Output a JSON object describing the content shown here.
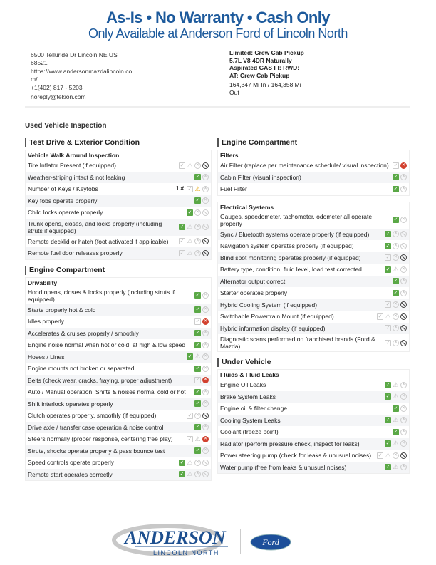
{
  "header": {
    "title": "As-Is • No Warranty • Cash Only",
    "subtitle": "Only Available at Anderson Ford of Lincoln North"
  },
  "dealer": {
    "address": "6500 Telluride Dr Lincoln NE US 68521",
    "url": "https://www.andersonmazdalincoln.com/",
    "phone": "+1(402) 817 - 5203",
    "email": "noreply@tekion.com"
  },
  "vehicle": {
    "desc": "Limited: Crew Cab Pickup 5.7L V8 4DR Naturally Aspirated GAS FI: RWD: AT: Crew Cab Pickup",
    "mileage": "164,347 Mi In / 164,358 Mi Out"
  },
  "page_title": "Used Vehicle Inspection",
  "icon_legend": {
    "C": "check selected (green)",
    "c": "check unselected",
    "W": "warning selected (yellow)",
    "w": "warning unselected",
    "X": "fail selected (red)",
    "x": "fail unselected",
    "N": "not-applicable selected",
    "n": "not-applicable unselected"
  },
  "colors": {
    "brand": "#1d5a9c",
    "pass": "#5aa846",
    "warn": "#e8a914",
    "fail": "#d2412f"
  },
  "left": [
    {
      "title": "Test Drive & Exterior Condition",
      "groups": [
        {
          "title": "Vehicle Walk Around Inspection",
          "rows": [
            {
              "label": "Tire Inflator Present (if equipped)",
              "icons": "cwxN"
            },
            {
              "label": "Weather-striping intact & not leaking",
              "icons": "Cx"
            },
            {
              "label": "Number of Keys / Keyfobs",
              "prefix": "1 #",
              "icons": "cWx"
            },
            {
              "label": "Key fobs operate properly",
              "icons": "Cx"
            },
            {
              "label": "Child locks operate properly",
              "icons": "Cxn"
            },
            {
              "label": "Trunk opens, closes, and locks properly (including struts if equipped)",
              "icons": "Cwxn"
            },
            {
              "label": "Remote decklid or hatch (foot activated if applicable)",
              "icons": "cwxN"
            },
            {
              "label": "Remote fuel door releases properly",
              "icons": "cwxN"
            }
          ]
        }
      ]
    },
    {
      "title": "Engine Compartment",
      "groups": [
        {
          "title": "Drivability",
          "rows": [
            {
              "label": "Hood opens, closes & locks properly (including struts if equipped)",
              "icons": "Cx"
            },
            {
              "label": "Starts properly hot & cold",
              "icons": "Cx"
            },
            {
              "label": "Idles properly",
              "icons": "cX"
            },
            {
              "label": "Accelerates & cruises properly / smoothly",
              "icons": "Cx"
            },
            {
              "label": "Engine noise normal when hot or cold; at high & low speed",
              "icons": "Cx"
            },
            {
              "label": "Hoses / Lines",
              "icons": "Cwx"
            },
            {
              "label": "Engine mounts not broken or separated",
              "icons": "Cx"
            },
            {
              "label": "Belts (check wear, cracks, fraying, proper adjustment)",
              "icons": "cX"
            },
            {
              "label": "Auto / Manual operation. Shifts & noises normal cold or hot",
              "icons": "Cx"
            },
            {
              "label": "Shift interlock operates properly",
              "icons": "Cx"
            },
            {
              "label": "Clutch operates properly, smoothly (if equipped)",
              "icons": "cxN"
            },
            {
              "label": "Drive axle / transfer case operation & noise control",
              "icons": "Cx"
            },
            {
              "label": "Steers normally (proper response, centering free play)",
              "icons": "cwX"
            },
            {
              "label": "Struts, shocks operate properly & pass bounce test",
              "icons": "Cx"
            },
            {
              "label": "Speed controls operate properly",
              "icons": "Cwxn"
            },
            {
              "label": "Remote start operates correctly",
              "icons": "Cwxn"
            }
          ]
        }
      ]
    }
  ],
  "right": [
    {
      "title": "Engine Compartment",
      "groups": [
        {
          "title": "Filters",
          "rows": [
            {
              "label": "Air Filter (replace per maintenance schedule/ visual inspection)",
              "icons": "cX"
            },
            {
              "label": "Cabin Filter (visual inspection)",
              "icons": "Cx"
            },
            {
              "label": "Fuel Filter",
              "icons": "Cx"
            }
          ]
        },
        {
          "title": "Electrical Systems",
          "rows": [
            {
              "label": "Gauges, speedometer, tachometer, odometer all operate properly",
              "icons": "Cx"
            },
            {
              "label": "Sync / Bluetooth systems operate properly (if equipped)",
              "icons": "Cxn"
            },
            {
              "label": "Navigation system operates properly (if equipped)",
              "icons": "Cxn"
            },
            {
              "label": "Blind spot monitoring operates properly (if equipped)",
              "icons": "cxN"
            },
            {
              "label": "Battery type, condition, fluid level, load test corrected",
              "icons": "Cwx"
            },
            {
              "label": "Alternator output correct",
              "icons": "Cx"
            },
            {
              "label": "Starter operates properly",
              "icons": "Cx"
            },
            {
              "label": "Hybrid Cooling System (if equipped)",
              "icons": "cxN"
            },
            {
              "label": "Switchable Powertrain Mount (if equipped)",
              "icons": "cwxN"
            },
            {
              "label": "Hybrid information display (if equipped)",
              "icons": "cxN"
            },
            {
              "label": "Diagnostic scans performed on franchised brands (Ford & Mazda)",
              "icons": "cxN"
            }
          ]
        }
      ]
    },
    {
      "title": "Under Vehicle",
      "groups": [
        {
          "title": "Fluids & Fluid Leaks",
          "rows": [
            {
              "label": "Engine Oil Leaks",
              "icons": "Cwx"
            },
            {
              "label": "Brake System Leaks",
              "icons": "Cwx"
            },
            {
              "label": "Engine oil & filter change",
              "icons": "Cx"
            },
            {
              "label": "Cooling System Leaks",
              "icons": "Cwx"
            },
            {
              "label": "Coolant (freeze point)",
              "icons": "Cx"
            },
            {
              "label": "Radiator (perform pressure check, inspect for leaks)",
              "icons": "Cwx"
            },
            {
              "label": "Power steering pump (check for leaks & unusual noises)",
              "icons": "cwxN"
            },
            {
              "label": "Water pump (free from leaks & unusual noises)",
              "icons": "Cwx"
            }
          ]
        }
      ]
    }
  ],
  "footer": {
    "logo_main": "ANDERSON",
    "logo_sub": "LINCOLN NORTH",
    "brand_logo": "Ford"
  }
}
